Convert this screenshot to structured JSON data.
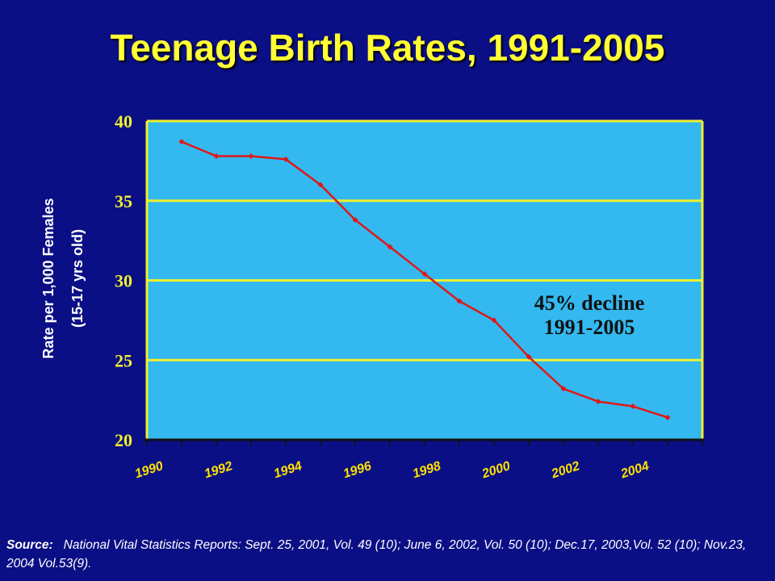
{
  "title": "Teenage Birth Rates, 1991-2005",
  "colors": {
    "background": "#0b0f85",
    "plot_area": "#33b9f0",
    "grid": "#f0f030",
    "line": "#e01818",
    "title": "#ffff33",
    "tick_labels": "#ffe000"
  },
  "chart_data": {
    "type": "line",
    "title": "Teenage Birth Rates, 1991-2005",
    "xlabel": "",
    "ylabel": "Rate per 1,000 Females (15-17 yrs old)",
    "ylabel_lines": [
      "Rate per 1,000 Females",
      "(15-17 yrs old)"
    ],
    "ylim": [
      20,
      40
    ],
    "yticks": [
      40,
      35,
      30,
      25,
      20
    ],
    "xlim": [
      1990,
      2006
    ],
    "xtick_labels": [
      "1990",
      "1992",
      "1994",
      "1996",
      "1998",
      "2000",
      "2002",
      "2004"
    ],
    "grid": true,
    "series": [
      {
        "x": [
          1991,
          1992,
          1993,
          1994,
          1995,
          1996,
          1997,
          1998,
          1999,
          2000,
          2001,
          2002,
          2003,
          2004,
          2005
        ],
        "values": [
          38.7,
          37.8,
          37.8,
          37.6,
          36.0,
          33.8,
          32.1,
          30.4,
          28.7,
          27.5,
          25.2,
          23.2,
          22.4,
          22.1,
          21.4
        ]
      }
    ],
    "annotation_lines": [
      "45% decline",
      "1991-2005"
    ]
  },
  "source": {
    "label": "Source:",
    "text": "National Vital Statistics Reports:  Sept. 25, 2001, Vol. 49 (10); June 6, 2002, Vol. 50 (10); Dec.17, 2003,Vol. 52 (10); Nov.23, 2004 Vol.53(9)."
  }
}
